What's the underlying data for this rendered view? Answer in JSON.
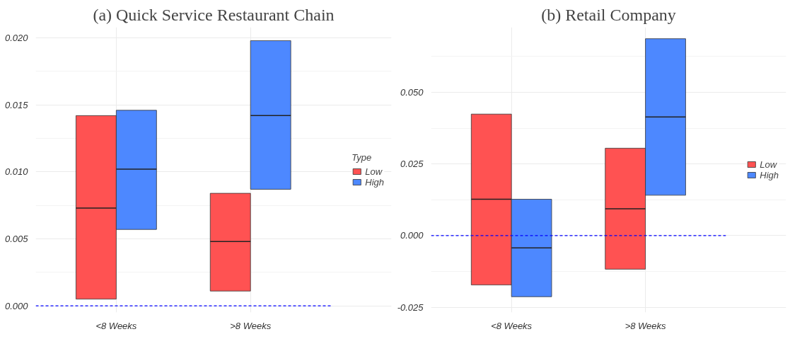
{
  "chart_data": [
    {
      "type": "box",
      "title": "(a) Quick Service Restaurant Chain",
      "categories": [
        "<8 Weeks",
        ">8 Weeks"
      ],
      "legend_title": "Type",
      "legend": "right",
      "grid": true,
      "ylim": [
        -0.0005,
        0.0208
      ],
      "yticks": [
        {
          "value": 0,
          "label": "0.000"
        },
        {
          "value": 0.005,
          "label": "0.005"
        },
        {
          "value": 0.01,
          "label": "0.010"
        },
        {
          "value": 0.015,
          "label": "0.015"
        },
        {
          "value": 0.02,
          "label": "0.020"
        }
      ],
      "series": [
        {
          "name": "Low",
          "color": "#ff5252",
          "boxes": [
            {
              "low": 0.0005,
              "q1": 0.0005,
              "median": 0.0073,
              "q3": 0.0142,
              "high": 0.0142
            },
            {
              "low": 0.0011,
              "q1": 0.0011,
              "median": 0.0048,
              "q3": 0.0084,
              "high": 0.0084
            }
          ]
        },
        {
          "name": "High",
          "color": "#4d88ff",
          "boxes": [
            {
              "low": 0.0057,
              "q1": 0.0057,
              "median": 0.0102,
              "q3": 0.0146,
              "high": 0.0146
            },
            {
              "low": 0.0087,
              "q1": 0.0087,
              "median": 0.0142,
              "q3": 0.0198,
              "high": 0.0198
            }
          ]
        }
      ],
      "ref_lines": [
        {
          "axis": "y",
          "value": 0,
          "label": null,
          "color": "#0000ff",
          "line_style": "dashed"
        }
      ]
    },
    {
      "type": "box",
      "title": "(b) Retail Company",
      "categories": [
        "<8 Weeks",
        ">8 Weeks"
      ],
      "legend": "right",
      "grid": true,
      "ylim": [
        -0.0268,
        0.0727
      ],
      "yticks": [
        {
          "value": -0.025,
          "label": "-0.025"
        },
        {
          "value": 0,
          "label": "0.000"
        },
        {
          "value": 0.025,
          "label": "0.025"
        },
        {
          "value": 0.05,
          "label": "0.050"
        }
      ],
      "series": [
        {
          "name": "Low",
          "color": "#ff5252",
          "boxes": [
            {
              "low": -0.0172,
              "q1": -0.0172,
              "median": 0.0127,
              "q3": 0.0424,
              "high": 0.0424
            },
            {
              "low": -0.0117,
              "q1": -0.0117,
              "median": 0.0094,
              "q3": 0.0305,
              "high": 0.0305
            }
          ]
        },
        {
          "name": "High",
          "color": "#4d88ff",
          "boxes": [
            {
              "low": -0.0213,
              "q1": -0.0213,
              "median": -0.0043,
              "q3": 0.0127,
              "high": 0.0127
            },
            {
              "low": 0.0141,
              "q1": 0.0141,
              "median": 0.0414,
              "q3": 0.0687,
              "high": 0.0687
            }
          ]
        }
      ],
      "ref_lines": [
        {
          "axis": "y",
          "value": 0,
          "label": null,
          "color": "#0000ff",
          "line_style": "dashed"
        }
      ]
    }
  ]
}
